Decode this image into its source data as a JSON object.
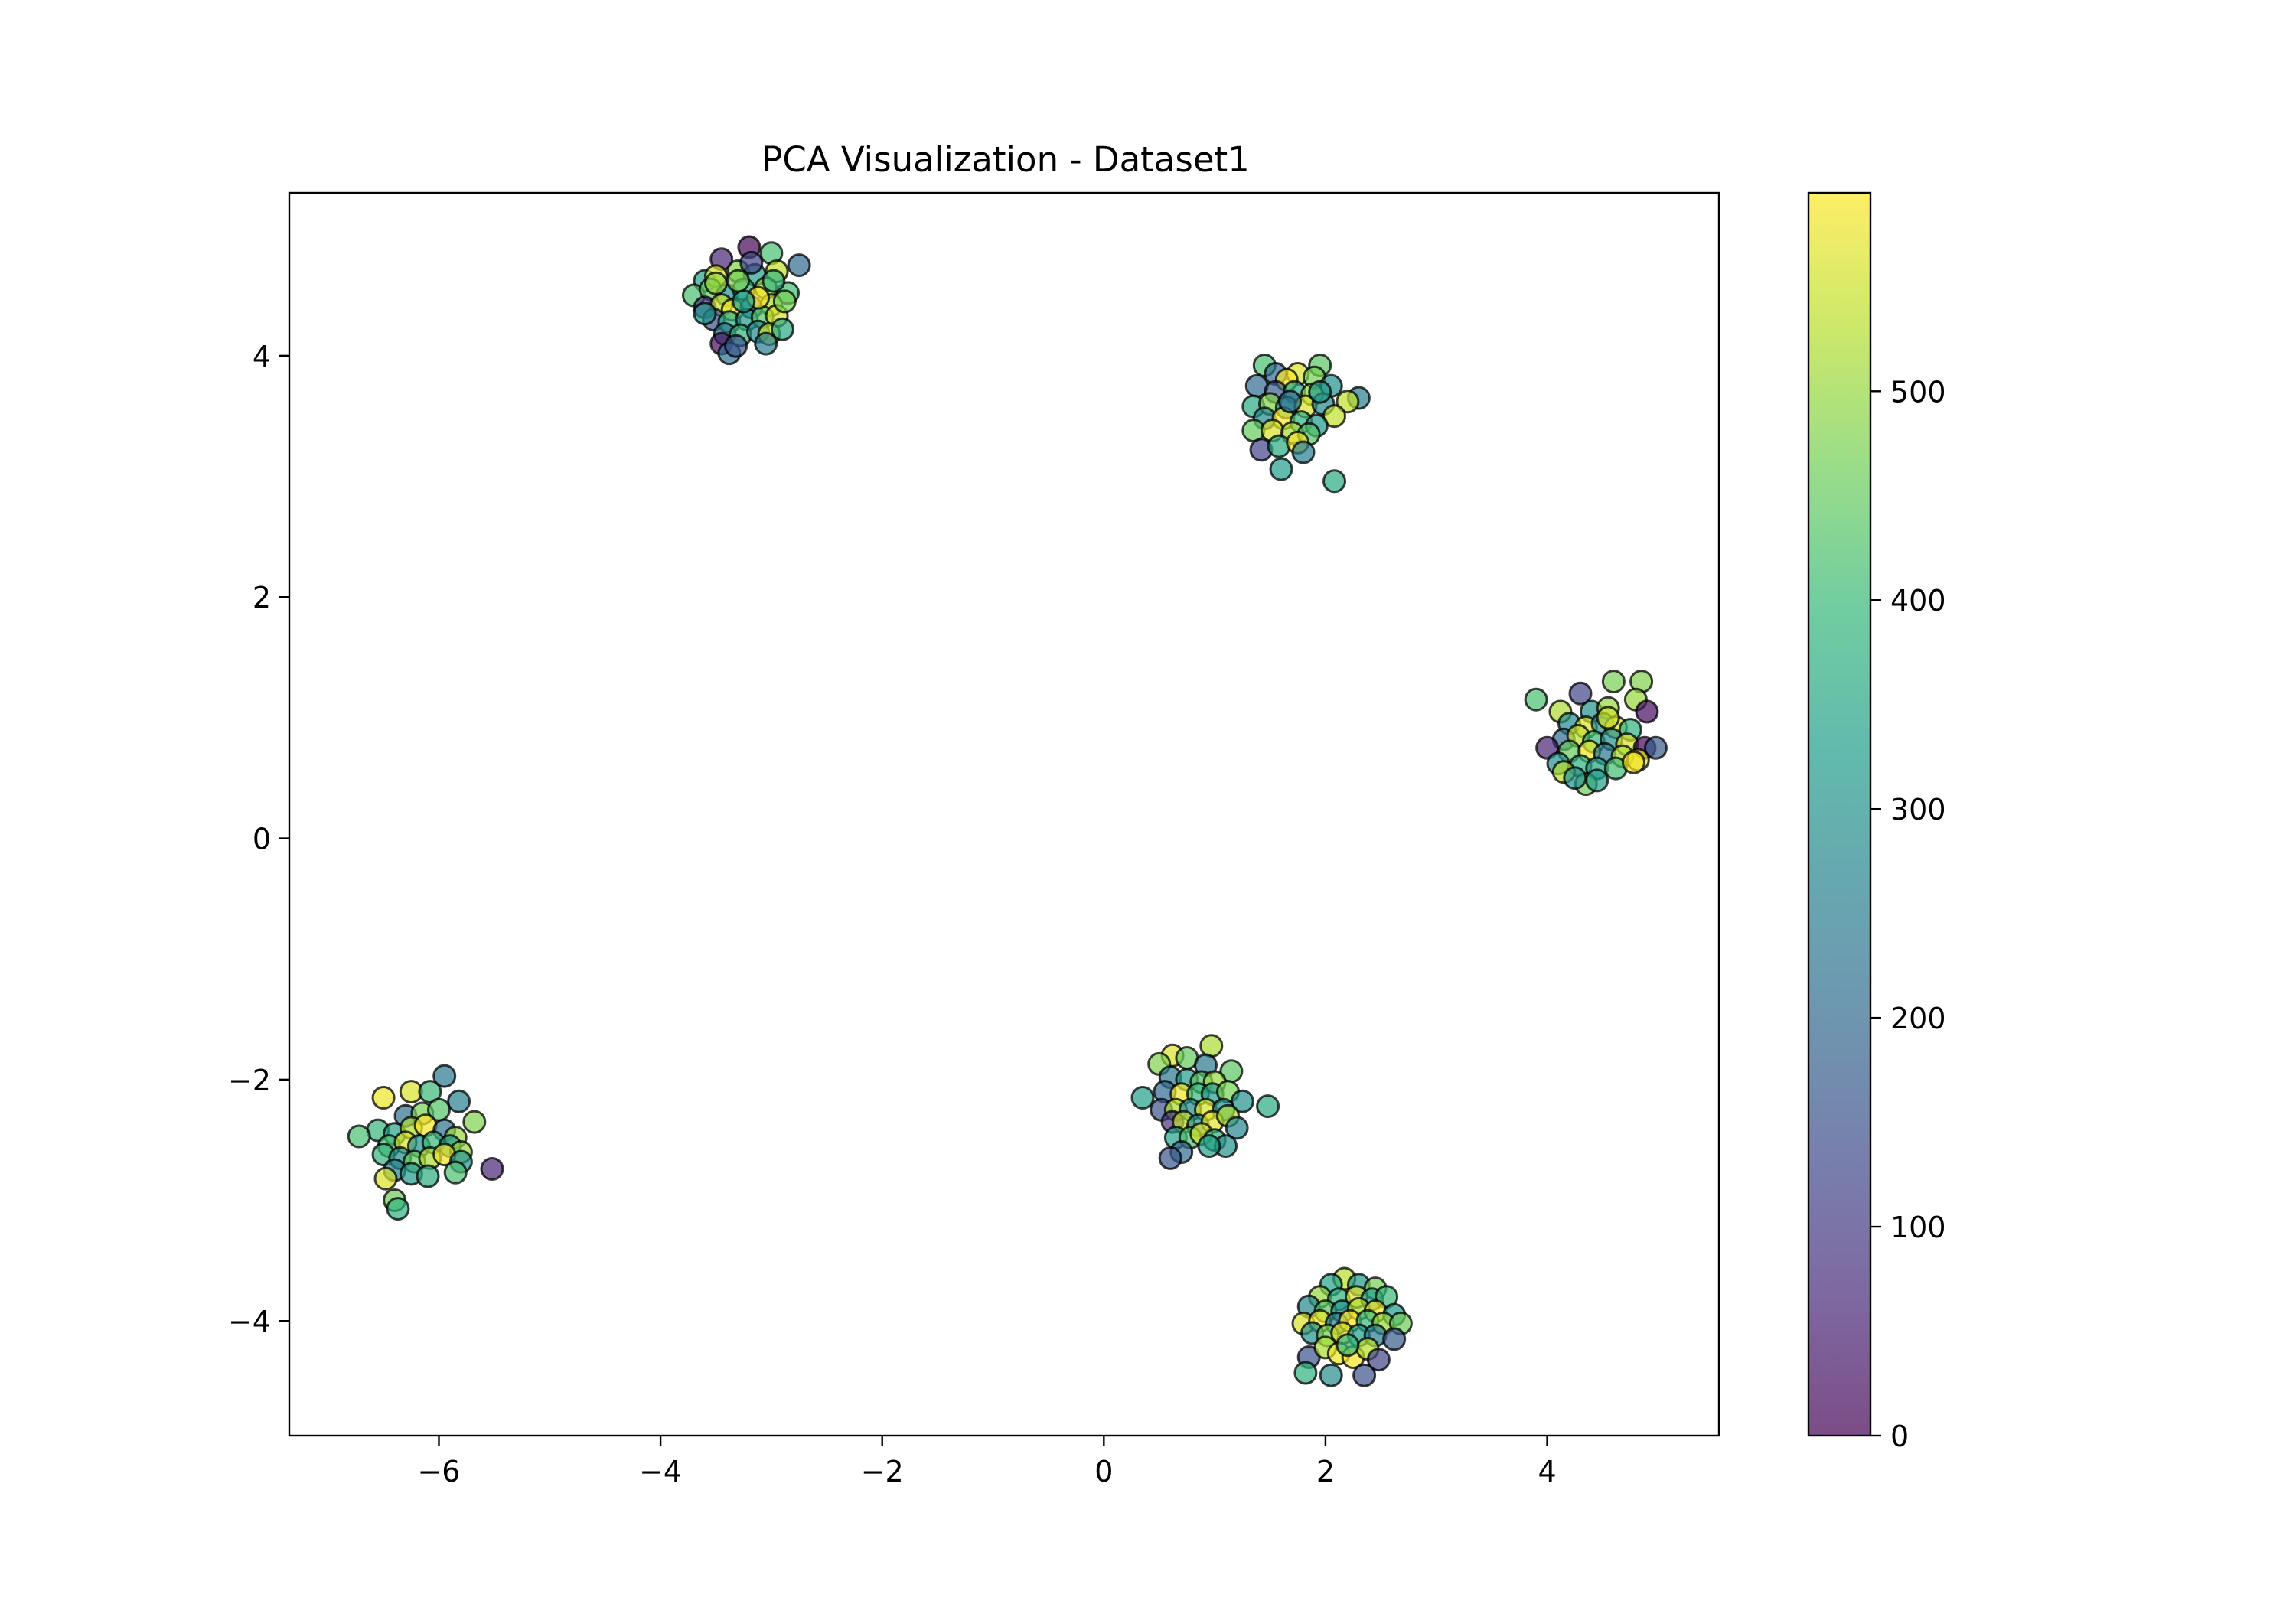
{
  "chart_data": {
    "type": "scatter",
    "title": "PCA Visualization - Dataset1",
    "xlabel": "",
    "ylabel": "",
    "xlim": [
      -7.35,
      5.55
    ],
    "ylim": [
      -4.95,
      5.35
    ],
    "x_ticks": [
      -6,
      -4,
      -2,
      0,
      2,
      4
    ],
    "x_tick_labels": [
      "−6",
      "−4",
      "−2",
      "0",
      "2",
      "4"
    ],
    "y_ticks": [
      -4,
      -2,
      0,
      2,
      4
    ],
    "y_tick_labels": [
      "−4",
      "−2",
      "0",
      "2",
      "4"
    ],
    "grid": false,
    "legend": "none",
    "colormap": "viridis",
    "colorbar": {
      "range": [
        0,
        595
      ],
      "ticks": [
        0,
        100,
        200,
        300,
        400,
        500
      ],
      "tick_labels": [
        "0",
        "100",
        "200",
        "300",
        "400",
        "500"
      ]
    },
    "colors": {
      "viridis": [
        "#440154",
        "#482878",
        "#3e4989",
        "#31688e",
        "#26828e",
        "#1f9e89",
        "#35b779",
        "#6ece58",
        "#b5de2b",
        "#fde725"
      ],
      "marker_edge": "#000000",
      "axes": "#000000"
    },
    "marker_alpha": 0.7,
    "series": [
      {
        "points": [
          [
            -3.45,
            4.8,
            60
          ],
          [
            -3.2,
            4.9,
            10
          ],
          [
            -3.0,
            4.85,
            420
          ],
          [
            -2.75,
            4.75,
            200
          ],
          [
            -3.6,
            4.62,
            340
          ],
          [
            -3.5,
            4.66,
            560
          ],
          [
            -3.3,
            4.7,
            480
          ],
          [
            -3.15,
            4.67,
            330
          ],
          [
            -2.95,
            4.7,
            540
          ],
          [
            -3.7,
            4.5,
            420
          ],
          [
            -3.55,
            4.55,
            450
          ],
          [
            -3.4,
            4.5,
            300
          ],
          [
            -3.25,
            4.55,
            380
          ],
          [
            -3.05,
            4.56,
            500
          ],
          [
            -2.85,
            4.52,
            410
          ],
          [
            -3.6,
            4.4,
            90
          ],
          [
            -3.45,
            4.42,
            550
          ],
          [
            -3.35,
            4.38,
            580
          ],
          [
            -3.18,
            4.4,
            270
          ],
          [
            -3.0,
            4.42,
            520
          ],
          [
            -3.52,
            4.3,
            150
          ],
          [
            -3.38,
            4.28,
            360
          ],
          [
            -3.22,
            4.3,
            310
          ],
          [
            -3.08,
            4.32,
            430
          ],
          [
            -2.95,
            4.33,
            560
          ],
          [
            -3.42,
            4.18,
            240
          ],
          [
            -3.28,
            4.17,
            390
          ],
          [
            -3.12,
            4.2,
            280
          ],
          [
            -3.02,
            4.18,
            540
          ],
          [
            -3.45,
            4.1,
            20
          ],
          [
            -3.38,
            4.02,
            210
          ],
          [
            -3.32,
            4.08,
            160
          ],
          [
            -3.05,
            4.1,
            250
          ],
          [
            -2.9,
            4.22,
            360
          ],
          [
            -3.5,
            4.6,
            500
          ],
          [
            -3.3,
            4.62,
            470
          ],
          [
            -3.12,
            4.48,
            600
          ],
          [
            -3.25,
            4.45,
            340
          ],
          [
            -2.98,
            4.62,
            390
          ],
          [
            -3.18,
            4.77,
            120
          ],
          [
            -3.6,
            4.35,
            310
          ],
          [
            -2.88,
            4.45,
            470
          ]
        ]
      },
      {
        "points": [
          [
            1.45,
            3.92,
            420
          ],
          [
            1.95,
            3.92,
            440
          ],
          [
            1.55,
            3.85,
            200
          ],
          [
            1.75,
            3.85,
            560
          ],
          [
            1.9,
            3.82,
            470
          ],
          [
            1.65,
            3.8,
            590
          ],
          [
            2.05,
            3.75,
            300
          ],
          [
            1.38,
            3.75,
            200
          ],
          [
            2.3,
            3.65,
            250
          ],
          [
            1.55,
            3.7,
            170
          ],
          [
            1.72,
            3.7,
            350
          ],
          [
            1.88,
            3.68,
            500
          ],
          [
            2.2,
            3.62,
            540
          ],
          [
            1.35,
            3.58,
            360
          ],
          [
            1.5,
            3.6,
            480
          ],
          [
            1.65,
            3.57,
            310
          ],
          [
            1.82,
            3.58,
            560
          ],
          [
            1.98,
            3.6,
            280
          ],
          [
            2.08,
            3.5,
            540
          ],
          [
            1.45,
            3.48,
            280
          ],
          [
            1.62,
            3.48,
            590
          ],
          [
            1.78,
            3.45,
            380
          ],
          [
            1.92,
            3.42,
            320
          ],
          [
            1.35,
            3.38,
            450
          ],
          [
            1.52,
            3.38,
            560
          ],
          [
            1.7,
            3.36,
            520
          ],
          [
            1.85,
            3.35,
            430
          ],
          [
            1.42,
            3.22,
            120
          ],
          [
            1.58,
            3.25,
            360
          ],
          [
            1.75,
            3.28,
            580
          ],
          [
            1.8,
            3.2,
            250
          ],
          [
            1.6,
            3.06,
            330
          ],
          [
            2.08,
            2.96,
            360
          ],
          [
            1.68,
            3.62,
            220
          ],
          [
            1.95,
            3.7,
            320
          ]
        ]
      },
      {
        "points": [
          [
            3.9,
            1.15,
            420
          ],
          [
            4.3,
            1.2,
            120
          ],
          [
            4.6,
            1.3,
            470
          ],
          [
            4.85,
            1.3,
            480
          ],
          [
            4.12,
            1.05,
            520
          ],
          [
            4.4,
            1.05,
            300
          ],
          [
            4.55,
            1.08,
            500
          ],
          [
            4.8,
            1.15,
            500
          ],
          [
            4.9,
            1.05,
            20
          ],
          [
            4.2,
            0.95,
            280
          ],
          [
            4.35,
            0.92,
            560
          ],
          [
            4.5,
            0.95,
            300
          ],
          [
            4.62,
            0.92,
            560
          ],
          [
            4.75,
            0.9,
            380
          ],
          [
            4.15,
            0.82,
            200
          ],
          [
            4.28,
            0.85,
            540
          ],
          [
            4.42,
            0.8,
            400
          ],
          [
            4.58,
            0.82,
            300
          ],
          [
            4.72,
            0.78,
            560
          ],
          [
            4.88,
            0.75,
            10
          ],
          [
            4.98,
            0.75,
            170
          ],
          [
            4.0,
            0.75,
            60
          ],
          [
            4.2,
            0.72,
            450
          ],
          [
            4.38,
            0.72,
            580
          ],
          [
            4.52,
            0.7,
            240
          ],
          [
            4.68,
            0.68,
            520
          ],
          [
            4.82,
            0.65,
            560
          ],
          [
            4.1,
            0.62,
            300
          ],
          [
            4.3,
            0.6,
            380
          ],
          [
            4.45,
            0.58,
            340
          ],
          [
            4.62,
            0.58,
            410
          ],
          [
            4.78,
            0.63,
            590
          ],
          [
            4.15,
            0.55,
            530
          ],
          [
            4.35,
            0.45,
            460
          ],
          [
            4.45,
            0.48,
            330
          ],
          [
            4.25,
            0.5,
            300
          ],
          [
            4.55,
            1.0,
            550
          ]
        ]
      },
      {
        "points": [
          [
            0.97,
            -1.72,
            520
          ],
          [
            0.62,
            -1.8,
            560
          ],
          [
            0.75,
            -1.82,
            450
          ],
          [
            0.5,
            -1.87,
            480
          ],
          [
            0.92,
            -1.88,
            240
          ],
          [
            1.15,
            -1.93,
            440
          ],
          [
            0.6,
            -1.98,
            240
          ],
          [
            0.75,
            -2.0,
            330
          ],
          [
            0.88,
            -2.02,
            430
          ],
          [
            1.0,
            -2.02,
            500
          ],
          [
            0.55,
            -2.1,
            200
          ],
          [
            0.7,
            -2.12,
            580
          ],
          [
            0.85,
            -2.12,
            400
          ],
          [
            0.98,
            -2.12,
            330
          ],
          [
            1.12,
            -2.1,
            470
          ],
          [
            0.35,
            -2.15,
            330
          ],
          [
            1.25,
            -2.18,
            300
          ],
          [
            1.48,
            -2.22,
            360
          ],
          [
            0.52,
            -2.25,
            150
          ],
          [
            0.65,
            -2.25,
            520
          ],
          [
            0.78,
            -2.25,
            280
          ],
          [
            0.92,
            -2.25,
            560
          ],
          [
            1.08,
            -2.25,
            300
          ],
          [
            0.62,
            -2.35,
            90
          ],
          [
            0.72,
            -2.35,
            540
          ],
          [
            0.85,
            -2.38,
            300
          ],
          [
            0.98,
            -2.35,
            570
          ],
          [
            1.12,
            -2.3,
            520
          ],
          [
            1.2,
            -2.4,
            270
          ],
          [
            0.65,
            -2.48,
            340
          ],
          [
            0.78,
            -2.48,
            420
          ],
          [
            0.88,
            -2.45,
            560
          ],
          [
            1.0,
            -2.5,
            380
          ],
          [
            1.1,
            -2.55,
            300
          ],
          [
            0.7,
            -2.6,
            200
          ],
          [
            0.6,
            -2.65,
            160
          ],
          [
            0.95,
            -2.55,
            330
          ]
        ]
      },
      {
        "points": [
          [
            -6.25,
            -2.1,
            560
          ],
          [
            -6.08,
            -2.1,
            400
          ],
          [
            -5.95,
            -1.97,
            240
          ],
          [
            -6.5,
            -2.15,
            580
          ],
          [
            -5.82,
            -2.18,
            260
          ],
          [
            -6.3,
            -2.3,
            220
          ],
          [
            -6.15,
            -2.28,
            470
          ],
          [
            -6.0,
            -2.25,
            430
          ],
          [
            -5.68,
            -2.35,
            480
          ],
          [
            -6.55,
            -2.42,
            390
          ],
          [
            -6.4,
            -2.45,
            340
          ],
          [
            -6.25,
            -2.4,
            520
          ],
          [
            -6.12,
            -2.38,
            590
          ],
          [
            -5.95,
            -2.42,
            220
          ],
          [
            -5.85,
            -2.48,
            500
          ],
          [
            -6.72,
            -2.47,
            420
          ],
          [
            -6.45,
            -2.55,
            420
          ],
          [
            -6.3,
            -2.52,
            560
          ],
          [
            -6.18,
            -2.55,
            300
          ],
          [
            -6.05,
            -2.52,
            400
          ],
          [
            -5.9,
            -2.55,
            320
          ],
          [
            -5.8,
            -2.6,
            500
          ],
          [
            -6.5,
            -2.62,
            390
          ],
          [
            -6.35,
            -2.65,
            300
          ],
          [
            -6.22,
            -2.68,
            450
          ],
          [
            -6.08,
            -2.65,
            520
          ],
          [
            -5.95,
            -2.62,
            580
          ],
          [
            -5.8,
            -2.68,
            300
          ],
          [
            -6.4,
            -2.75,
            260
          ],
          [
            -6.25,
            -2.78,
            320
          ],
          [
            -6.1,
            -2.8,
            370
          ],
          [
            -5.85,
            -2.77,
            420
          ],
          [
            -5.52,
            -2.74,
            60
          ],
          [
            -6.48,
            -2.82,
            560
          ],
          [
            -6.4,
            -3.0,
            460
          ],
          [
            -6.37,
            -3.07,
            380
          ]
        ]
      },
      {
        "points": [
          [
            2.17,
            -3.65,
            530
          ],
          [
            2.05,
            -3.7,
            340
          ],
          [
            2.3,
            -3.7,
            310
          ],
          [
            2.45,
            -3.73,
            470
          ],
          [
            1.95,
            -3.8,
            500
          ],
          [
            2.12,
            -3.82,
            380
          ],
          [
            2.28,
            -3.8,
            560
          ],
          [
            2.42,
            -3.82,
            330
          ],
          [
            2.55,
            -3.8,
            400
          ],
          [
            1.85,
            -3.88,
            280
          ],
          [
            2.0,
            -3.92,
            440
          ],
          [
            2.15,
            -3.92,
            300
          ],
          [
            2.3,
            -3.9,
            520
          ],
          [
            2.45,
            -3.92,
            580
          ],
          [
            2.62,
            -3.95,
            320
          ],
          [
            1.8,
            -4.02,
            560
          ],
          [
            1.95,
            -4.0,
            580
          ],
          [
            2.1,
            -4.02,
            260
          ],
          [
            2.22,
            -4.0,
            600
          ],
          [
            2.38,
            -4.0,
            400
          ],
          [
            2.52,
            -4.02,
            500
          ],
          [
            2.68,
            -4.02,
            460
          ],
          [
            1.88,
            -4.1,
            300
          ],
          [
            2.02,
            -4.12,
            470
          ],
          [
            2.15,
            -4.1,
            560
          ],
          [
            2.3,
            -4.12,
            330
          ],
          [
            2.45,
            -4.12,
            250
          ],
          [
            2.62,
            -4.15,
            170
          ],
          [
            1.85,
            -4.3,
            150
          ],
          [
            2.0,
            -4.22,
            520
          ],
          [
            2.12,
            -4.27,
            580
          ],
          [
            2.25,
            -4.3,
            590
          ],
          [
            2.38,
            -4.23,
            530
          ],
          [
            2.48,
            -4.32,
            120
          ],
          [
            1.82,
            -4.43,
            380
          ],
          [
            2.05,
            -4.45,
            290
          ],
          [
            2.35,
            -4.45,
            150
          ],
          [
            2.2,
            -4.2,
            400
          ]
        ]
      }
    ]
  }
}
